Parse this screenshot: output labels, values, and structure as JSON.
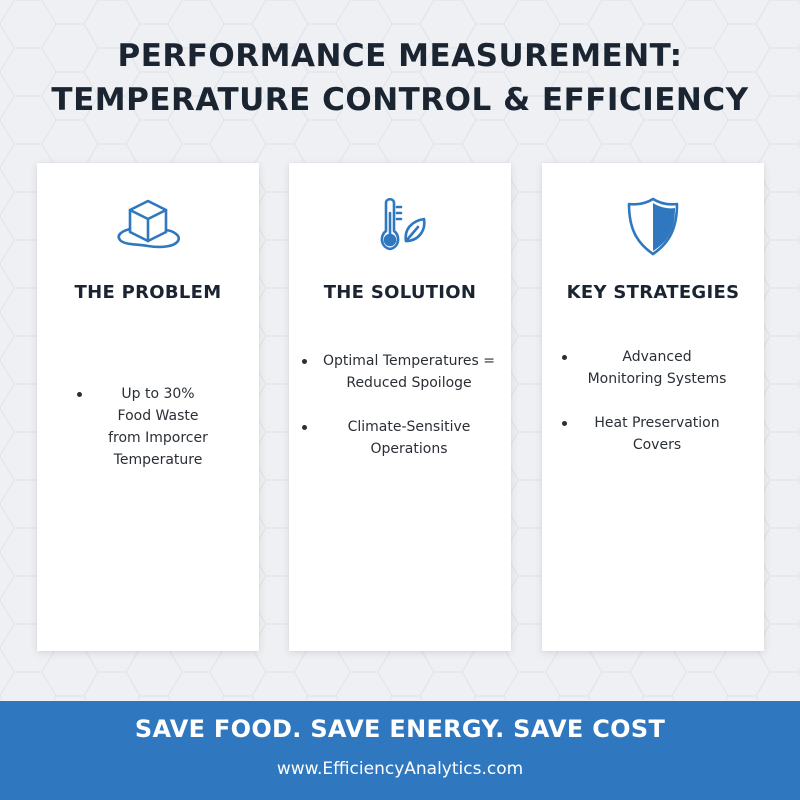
{
  "page": {
    "title_line1": "PERFORMANCE MEASUREMENT:",
    "title_line2": "TEMPERATURE CONTROL & EFFICIENCY"
  },
  "colors": {
    "accent_blue": "#2f78bf",
    "text_dark": "#1b2431",
    "background": "#eef0f3",
    "card": "#ffffff"
  },
  "cards": [
    {
      "icon": "melting-ice-cube-icon",
      "heading": "THE PROBLEM",
      "bullets": [
        "Up to 30%\nFood Waste\nfrom Imporcer\nTemperature"
      ]
    },
    {
      "icon": "thermometer-leaf-icon",
      "heading": "THE SOLUTION",
      "bullets": [
        "Optimal Temperatures =\nReduced Spoiloge",
        "Climate-Sensitive\nOperations"
      ]
    },
    {
      "icon": "shield-icon",
      "heading": "KEY STRATEGIES",
      "bullets": [
        "Advanced\nMonitoring Systems",
        "Heat Preservation\nCovers"
      ]
    }
  ],
  "footer": {
    "tagline": "SAVE FOOD. SAVE ENERGY. SAVE COST",
    "url": "www.EfficiencyAnalytics.com"
  }
}
